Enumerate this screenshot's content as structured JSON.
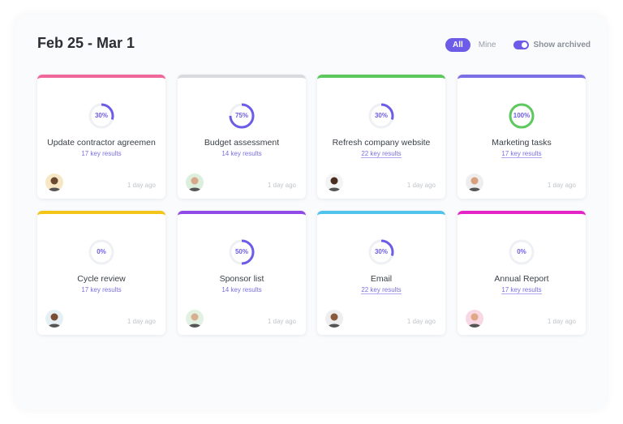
{
  "header": {
    "title": "Feb 25 - Mar 1",
    "filter_all": "All",
    "filter_mine": "Mine",
    "show_archived_label": "Show archived",
    "show_archived_on": true
  },
  "cards": [
    {
      "name": "Update contractor agreemen",
      "progress": 30,
      "progress_label": "30%",
      "key_results": "17 key results",
      "time": "1 day ago",
      "color": "#f0679a",
      "underlined": false,
      "avatar_bg": "#f7e7c4",
      "skin": "#6b4a30"
    },
    {
      "name": "Budget assessment",
      "progress": 75,
      "progress_label": "75%",
      "key_results": "14 key results",
      "time": "1 day ago",
      "color": "#d9dadd",
      "underlined": false,
      "avatar_bg": "#dcefdc",
      "skin": "#d9a888"
    },
    {
      "name": "Refresh company website",
      "progress": 30,
      "progress_label": "30%",
      "key_results": "22 key results",
      "time": "1 day ago",
      "color": "#5cc85e",
      "underlined": true,
      "avatar_bg": "#f4f4f4",
      "skin": "#4a2f20"
    },
    {
      "name": "Marketing tasks",
      "progress": 100,
      "progress_label": "100%",
      "key_results": "17 key results",
      "time": "1 day ago",
      "color": "#7b6fe8",
      "underlined": true,
      "avatar_bg": "#eeeeee",
      "skin": "#d9a07e"
    },
    {
      "name": "Cycle review",
      "progress": 0,
      "progress_label": "0%",
      "key_results": "17 key results",
      "time": "1 day ago",
      "color": "#f2c518",
      "underlined": false,
      "avatar_bg": "#e6f0f4",
      "skin": "#7a4e34"
    },
    {
      "name": "Sponsor list",
      "progress": 50,
      "progress_label": "50%",
      "key_results": "14 key results",
      "time": "1 day ago",
      "color": "#8f4ae8",
      "underlined": false,
      "avatar_bg": "#e3f1e3",
      "skin": "#d8b090"
    },
    {
      "name": "Email",
      "progress": 30,
      "progress_label": "30%",
      "key_results": "22 key results",
      "time": "1 day ago",
      "color": "#52c4ec",
      "underlined": true,
      "avatar_bg": "#eeeeee",
      "skin": "#8a5a3c"
    },
    {
      "name": "Annual Report",
      "progress": 0,
      "progress_label": "0%",
      "key_results": "17 key results",
      "time": "1 day ago",
      "color": "#e524c8",
      "underlined": true,
      "avatar_bg": "#f8d8e4",
      "skin": "#e0a888"
    }
  ]
}
